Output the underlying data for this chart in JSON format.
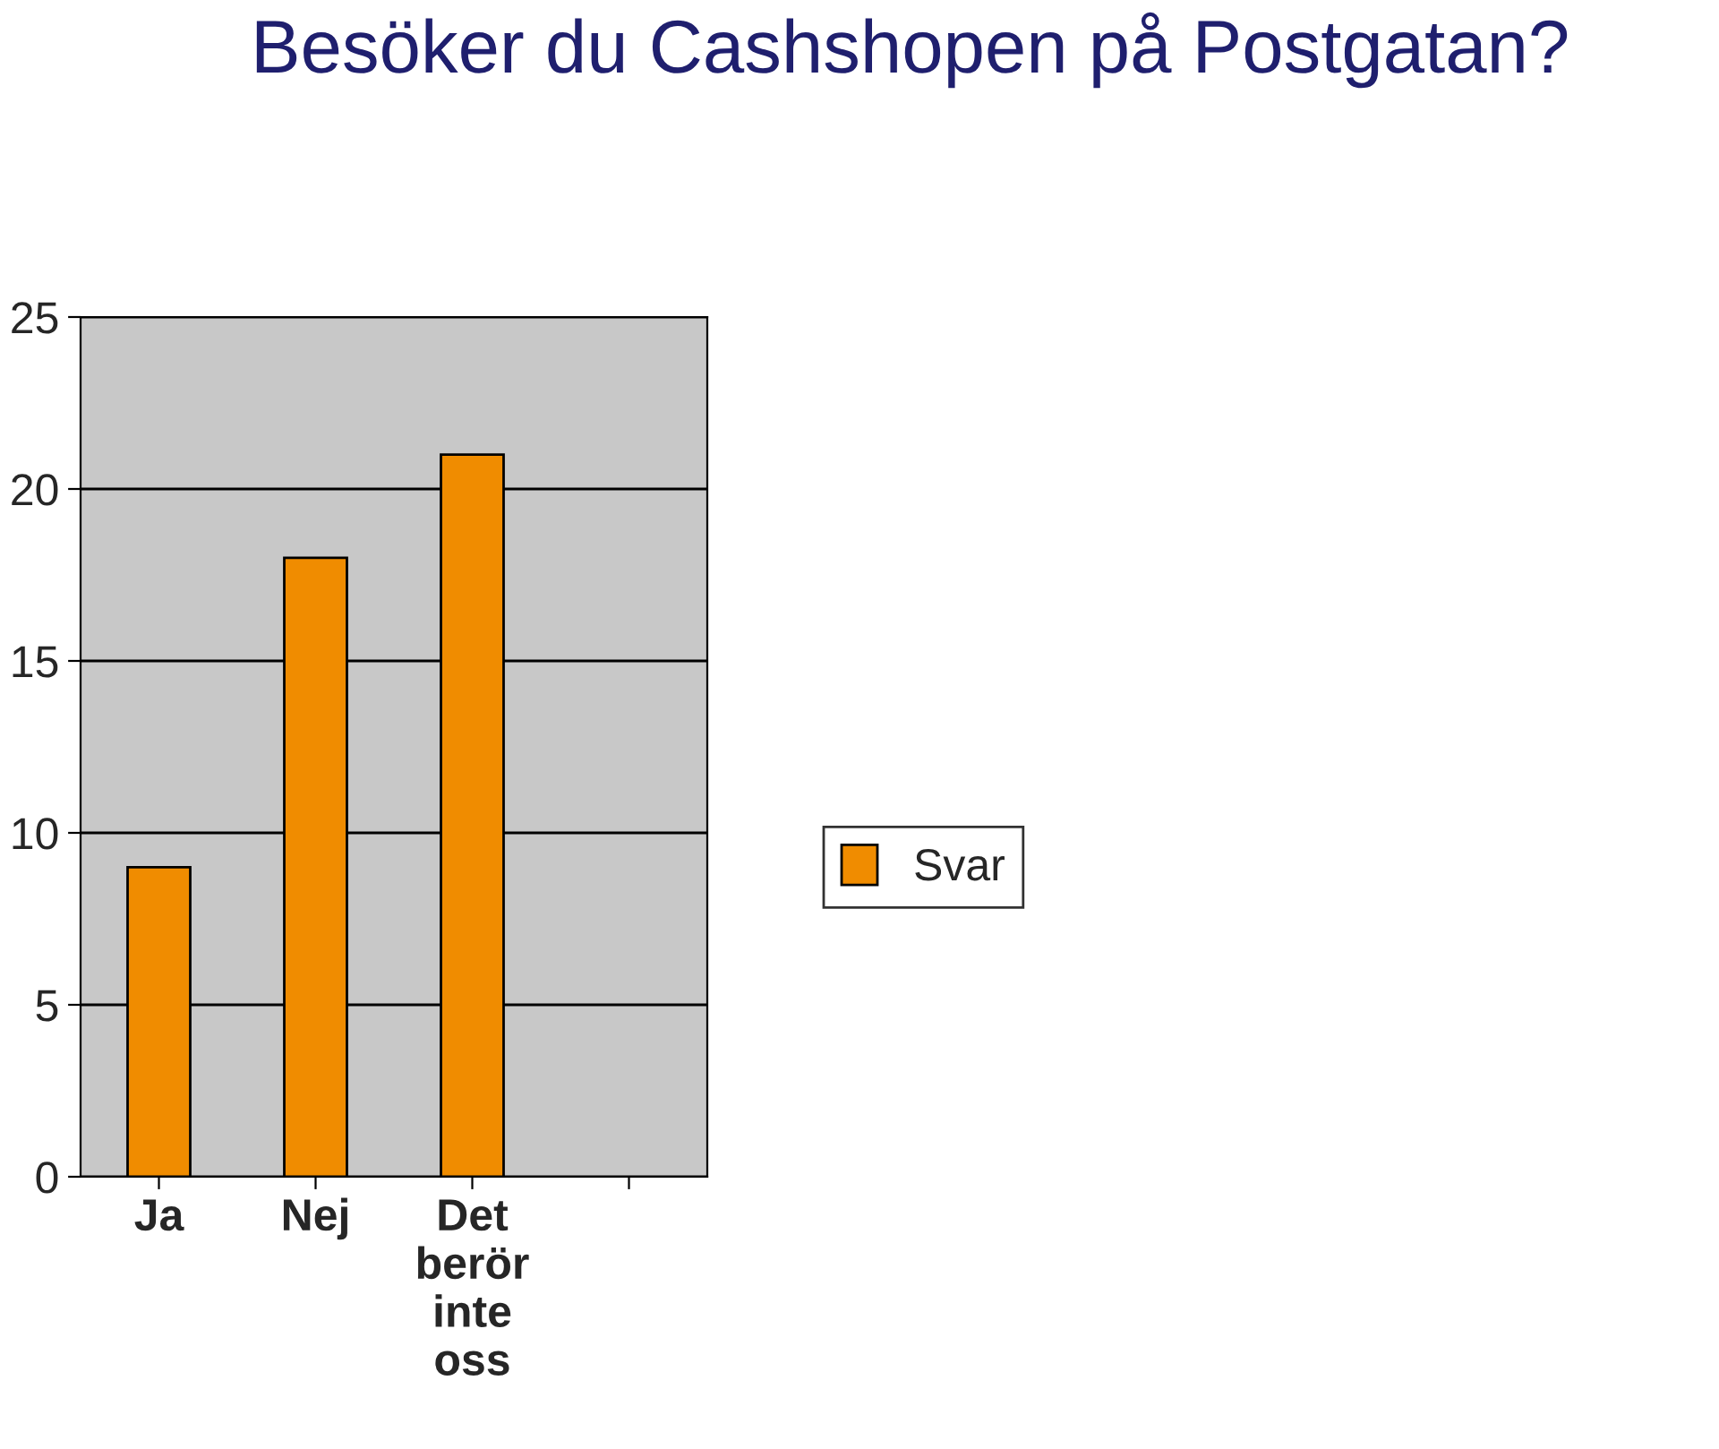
{
  "chart_data": {
    "type": "bar",
    "title": "Besöker du Cashshopen på Postgatan?",
    "categories": [
      "Ja",
      "Nej",
      "Det\nberör\ninte\noss",
      null
    ],
    "series": [
      {
        "name": "Svar",
        "color": "#f08c00",
        "values": [
          9,
          18,
          21,
          null
        ]
      }
    ],
    "ylim": [
      0,
      25
    ],
    "yticks": [
      0,
      5,
      10,
      15,
      20,
      25
    ],
    "grid": "y",
    "legend": "right"
  }
}
